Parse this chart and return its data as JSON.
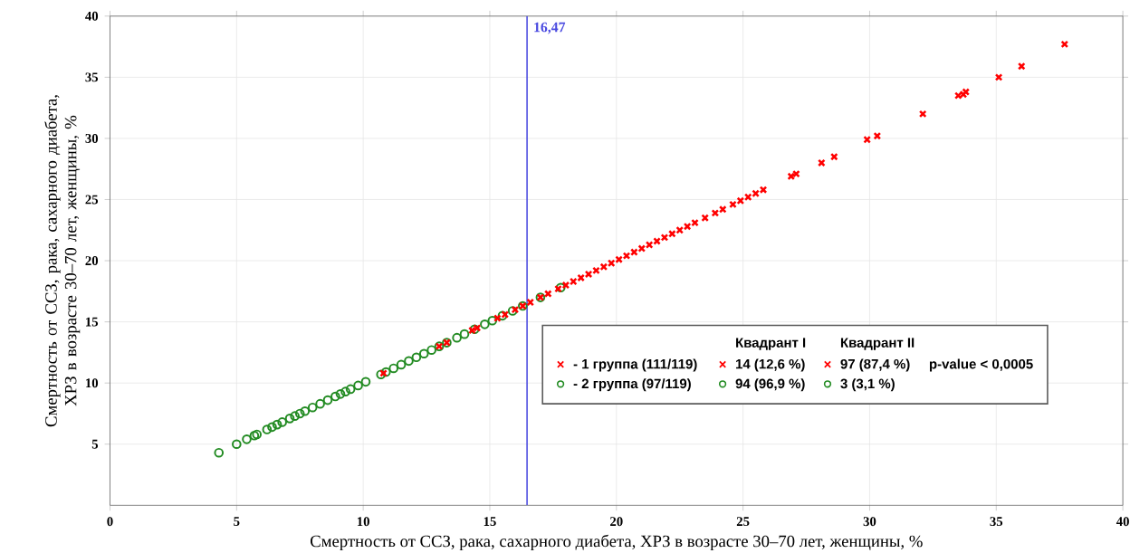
{
  "chart_data": {
    "type": "scatter",
    "xlabel": "Смертность от ССЗ, рака, сахарного диабета, ХРЗ в возрасте 30–70 лет, женщины, %",
    "ylabel": "Смертность от ССЗ, рака, сахарного диабета, ХРЗ в возрасте 30–70 лет, женщины, %",
    "xlim": [
      0,
      40
    ],
    "ylim": [
      0,
      40
    ],
    "xticks": [
      0,
      5,
      10,
      15,
      20,
      25,
      30,
      35,
      40
    ],
    "yticks": [
      5,
      10,
      15,
      20,
      25,
      30,
      35,
      40
    ],
    "grid": true,
    "legend": "bottom right",
    "series": [
      {
        "name": "- 1 группа (111/119)",
        "color": "#ff0000",
        "marker": "cross",
        "x": [
          10.8,
          13.0,
          13.3,
          14.3,
          14.5,
          15.3,
          15.6,
          16.0,
          16.3,
          16.6,
          17.0,
          17.3,
          17.7,
          18.0,
          18.3,
          18.6,
          18.9,
          19.2,
          19.5,
          19.8,
          20.1,
          20.4,
          20.7,
          21.0,
          21.3,
          21.6,
          21.9,
          22.2,
          22.5,
          22.8,
          23.1,
          23.5,
          23.9,
          24.2,
          24.6,
          24.9,
          25.2,
          25.5,
          25.8,
          26.9,
          27.1,
          28.1,
          28.6,
          29.9,
          30.3,
          32.1,
          33.5,
          33.7,
          33.8,
          35.1,
          36.0,
          37.7
        ],
        "values": [
          10.8,
          13.0,
          13.3,
          14.3,
          14.5,
          15.3,
          15.6,
          16.0,
          16.3,
          16.6,
          17.0,
          17.3,
          17.7,
          18.0,
          18.3,
          18.6,
          18.9,
          19.2,
          19.5,
          19.8,
          20.1,
          20.4,
          20.7,
          21.0,
          21.3,
          21.6,
          21.9,
          22.2,
          22.5,
          22.8,
          23.1,
          23.5,
          23.9,
          24.2,
          24.6,
          24.9,
          25.2,
          25.5,
          25.8,
          26.9,
          27.1,
          28.0,
          28.5,
          29.9,
          30.2,
          32.0,
          33.5,
          33.6,
          33.8,
          35.0,
          35.9,
          37.7
        ]
      },
      {
        "name": "- 2 группа (97/119)",
        "color": "#228b22",
        "marker": "circle",
        "x": [
          4.3,
          5.0,
          5.4,
          5.7,
          5.8,
          6.2,
          6.4,
          6.6,
          6.8,
          7.1,
          7.3,
          7.5,
          7.7,
          8.0,
          8.3,
          8.6,
          8.9,
          9.1,
          9.3,
          9.5,
          9.8,
          10.1,
          10.7,
          10.9,
          11.2,
          11.5,
          11.8,
          12.1,
          12.4,
          12.7,
          13.0,
          13.3,
          13.7,
          14.0,
          14.4,
          14.8,
          15.1,
          15.5,
          15.9,
          16.3,
          17.0,
          17.8
        ],
        "values": [
          4.3,
          5.0,
          5.4,
          5.7,
          5.8,
          6.2,
          6.4,
          6.6,
          6.8,
          7.1,
          7.3,
          7.5,
          7.7,
          8.0,
          8.3,
          8.6,
          8.9,
          9.1,
          9.3,
          9.5,
          9.8,
          10.1,
          10.7,
          10.9,
          11.2,
          11.5,
          11.8,
          12.1,
          12.4,
          12.7,
          13.0,
          13.3,
          13.7,
          14.0,
          14.4,
          14.8,
          15.1,
          15.5,
          15.9,
          16.3,
          17.0,
          17.8
        ]
      }
    ],
    "ref_lines": [
      {
        "axis": "x",
        "value": 16.47,
        "label": "16,47",
        "color": "#4a4ae0"
      }
    ],
    "annotations": [
      "Квадрант I",
      "Квадрант II",
      "14 (12,6 %)",
      "97 (87,4 %)",
      "p-value < 0,0005",
      "94 (96,9 %)",
      "3 (3,1 %)"
    ]
  }
}
